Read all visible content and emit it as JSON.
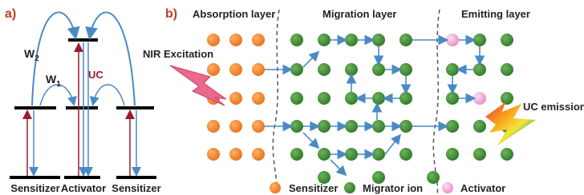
{
  "panel_a": {
    "label": "a)",
    "w2": {
      "symbol": "W",
      "subscript": "2"
    },
    "w1": {
      "symbol": "W",
      "subscript": "1"
    },
    "uc": "UC",
    "levels": [
      "Sensitizer",
      "Activator",
      "Sensitizer"
    ]
  },
  "panel_b": {
    "label": "b)",
    "layers": [
      "Absorption layer",
      "Migration layer",
      "Emitting layer"
    ],
    "nir": "NIR Excitation",
    "emission": "UC emission",
    "legend": [
      "Sensitizer",
      "Migrator ion",
      "Activator"
    ]
  }
}
